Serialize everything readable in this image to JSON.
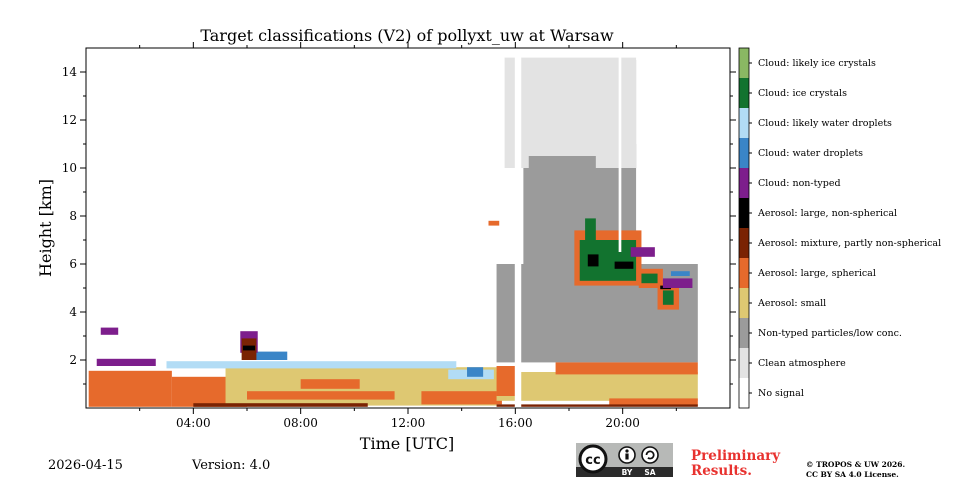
{
  "chart_data": {
    "type": "heatmap",
    "title": "Target classifications (V2) of pollyxt_uw at Warsaw",
    "xlabel": "Time [UTC]",
    "ylabel": "Height [km]",
    "xlim": [
      0,
      24
    ],
    "ylim": [
      0,
      15
    ],
    "x_tick_labels": [
      {
        "label": "04:00",
        "value": 4
      },
      {
        "label": "08:00",
        "value": 8
      },
      {
        "label": "12:00",
        "value": 12
      },
      {
        "label": "16:00",
        "value": 16
      },
      {
        "label": "20:00",
        "value": 20
      }
    ],
    "y_tick_labels": [
      {
        "label": "2",
        "value": 2
      },
      {
        "label": "4",
        "value": 4
      },
      {
        "label": "6",
        "value": 6
      },
      {
        "label": "8",
        "value": 8
      },
      {
        "label": "10",
        "value": 10
      },
      {
        "label": "12",
        "value": 12
      },
      {
        "label": "14",
        "value": 14
      }
    ],
    "classes": [
      {
        "label": "No signal",
        "color": "#ffffff"
      },
      {
        "label": "Clean atmosphere",
        "color": "#e3e3e3"
      },
      {
        "label": "Non-typed particles/low conc.",
        "color": "#9b9b9b"
      },
      {
        "label": "Aerosol: small",
        "color": "#dec872"
      },
      {
        "label": "Aerosol: large, spherical",
        "color": "#e66a2c"
      },
      {
        "label": "Aerosol: mixture, partly non-spherical",
        "color": "#7a2303"
      },
      {
        "label": "Aerosol: large, non-spherical",
        "color": "#000000"
      },
      {
        "label": "Cloud: non-typed",
        "color": "#7d1e8c"
      },
      {
        "label": "Cloud: water droplets",
        "color": "#3a85c7"
      },
      {
        "label": "Cloud: likely water droplets",
        "color": "#b2dcf5"
      },
      {
        "label": "Cloud: ice crystals",
        "color": "#12732f"
      },
      {
        "label": "Cloud: likely ice crystals",
        "color": "#8ab863"
      }
    ],
    "regions": [
      {
        "cls": 4,
        "x0": 0.1,
        "x1": 3.2,
        "h0": 0.05,
        "h1": 1.55
      },
      {
        "cls": 4,
        "x0": 3.2,
        "x1": 6.0,
        "h0": 0.05,
        "h1": 1.3
      },
      {
        "cls": 3,
        "x0": 5.2,
        "x1": 15.3,
        "h0": 0.1,
        "h1": 1.7
      },
      {
        "cls": 4,
        "x0": 6.0,
        "x1": 11.5,
        "h0": 0.35,
        "h1": 0.7
      },
      {
        "cls": 4,
        "x0": 8.0,
        "x1": 10.2,
        "h0": 0.8,
        "h1": 1.2
      },
      {
        "cls": 5,
        "x0": 4.0,
        "x1": 10.5,
        "h0": 0.05,
        "h1": 0.2
      },
      {
        "cls": 4,
        "x0": 12.5,
        "x1": 15.5,
        "h0": 0.15,
        "h1": 0.7
      },
      {
        "cls": 9,
        "x0": 3.0,
        "x1": 13.8,
        "h0": 1.65,
        "h1": 1.95
      },
      {
        "cls": 8,
        "x0": 6.3,
        "x1": 7.5,
        "h0": 2.0,
        "h1": 2.35
      },
      {
        "cls": 7,
        "x0": 0.4,
        "x1": 2.6,
        "h0": 1.75,
        "h1": 2.05
      },
      {
        "cls": 7,
        "x0": 0.55,
        "x1": 1.2,
        "h0": 3.05,
        "h1": 3.35
      },
      {
        "cls": 9,
        "x0": 13.5,
        "x1": 15.2,
        "h0": 1.2,
        "h1": 1.6
      },
      {
        "cls": 8,
        "x0": 14.2,
        "x1": 14.8,
        "h0": 1.3,
        "h1": 1.7
      },
      {
        "cls": 2,
        "x0": 15.3,
        "x1": 22.8,
        "h0": 1.9,
        "h1": 6.0
      },
      {
        "cls": 2,
        "x0": 16.3,
        "x1": 20.5,
        "h0": 6.0,
        "h1": 11.0
      },
      {
        "cls": 2,
        "x0": 16.3,
        "x1": 18.0,
        "h0": 11.0,
        "h1": 14.0
      },
      {
        "cls": 2,
        "x0": 19.5,
        "x1": 20.5,
        "h0": 10.0,
        "h1": 14.5
      },
      {
        "cls": 1,
        "x0": 15.6,
        "x1": 20.5,
        "h0": 10.0,
        "h1": 14.6
      },
      {
        "cls": 2,
        "x0": 16.5,
        "x1": 19.0,
        "h0": 6.5,
        "h1": 10.5
      },
      {
        "cls": 3,
        "x0": 15.3,
        "x1": 22.8,
        "h0": 0.3,
        "h1": 1.5
      },
      {
        "cls": 4,
        "x0": 15.3,
        "x1": 16.0,
        "h0": 0.5,
        "h1": 1.75
      },
      {
        "cls": 4,
        "x0": 17.5,
        "x1": 22.8,
        "h0": 1.4,
        "h1": 1.9
      },
      {
        "cls": 4,
        "x0": 19.5,
        "x1": 22.8,
        "h0": 0.1,
        "h1": 0.4
      },
      {
        "cls": 5,
        "x0": 15.3,
        "x1": 22.8,
        "h0": 0.05,
        "h1": 0.15
      },
      {
        "cls": 4,
        "x0": 18.2,
        "x1": 20.7,
        "h0": 5.1,
        "h1": 7.4
      },
      {
        "cls": 10,
        "x0": 18.4,
        "x1": 20.5,
        "h0": 5.3,
        "h1": 7.0
      },
      {
        "cls": 10,
        "x0": 18.6,
        "x1": 19.0,
        "h0": 7.0,
        "h1": 7.9
      },
      {
        "cls": 6,
        "x0": 18.7,
        "x1": 19.1,
        "h0": 5.9,
        "h1": 6.4
      },
      {
        "cls": 6,
        "x0": 19.7,
        "x1": 20.4,
        "h0": 5.8,
        "h1": 6.1
      },
      {
        "cls": 7,
        "x0": 20.3,
        "x1": 21.2,
        "h0": 6.3,
        "h1": 6.7
      },
      {
        "cls": 4,
        "x0": 20.6,
        "x1": 21.5,
        "h0": 5.0,
        "h1": 5.8
      },
      {
        "cls": 10,
        "x0": 20.7,
        "x1": 21.3,
        "h0": 5.2,
        "h1": 5.6
      },
      {
        "cls": 4,
        "x0": 21.3,
        "x1": 22.1,
        "h0": 4.1,
        "h1": 5.2
      },
      {
        "cls": 10,
        "x0": 21.5,
        "x1": 21.9,
        "h0": 4.3,
        "h1": 4.9
      },
      {
        "cls": 6,
        "x0": 21.4,
        "x1": 21.8,
        "h0": 4.95,
        "h1": 5.1
      },
      {
        "cls": 7,
        "x0": 21.5,
        "x1": 22.6,
        "h0": 5.0,
        "h1": 5.4
      },
      {
        "cls": 8,
        "x0": 21.8,
        "x1": 22.5,
        "h0": 5.5,
        "h1": 5.7
      },
      {
        "cls": 7,
        "x0": 5.75,
        "x1": 6.4,
        "h0": 2.3,
        "h1": 3.2
      },
      {
        "cls": 5,
        "x0": 5.8,
        "x1": 6.35,
        "h0": 2.0,
        "h1": 2.9
      },
      {
        "cls": 6,
        "x0": 5.85,
        "x1": 6.3,
        "h0": 2.4,
        "h1": 2.6
      },
      {
        "cls": 4,
        "x0": 15.0,
        "x1": 15.4,
        "h0": 7.6,
        "h1": 7.8
      },
      {
        "cls": 0,
        "x0": 15.98,
        "x1": 16.22,
        "h0": 0.0,
        "h1": 15.0
      },
      {
        "cls": 0,
        "x0": 19.85,
        "x1": 19.95,
        "h0": 6.5,
        "h1": 15.0
      }
    ]
  },
  "footer": {
    "date": "2026-04-15",
    "version": "Version: 4.0",
    "license_badge": {
      "cc": "cc",
      "by": "BY",
      "sa": "SA"
    },
    "preliminary_line1": "Preliminary",
    "preliminary_line2": "Results.",
    "copyright_line1": "© TROPOS & UW 2026.",
    "copyright_line2": "CC BY SA 4.0 License."
  },
  "colors": {
    "preliminary": "#e8322f",
    "badge_bg": "#b7b9b7",
    "badge_band": "#2b2b2b"
  }
}
